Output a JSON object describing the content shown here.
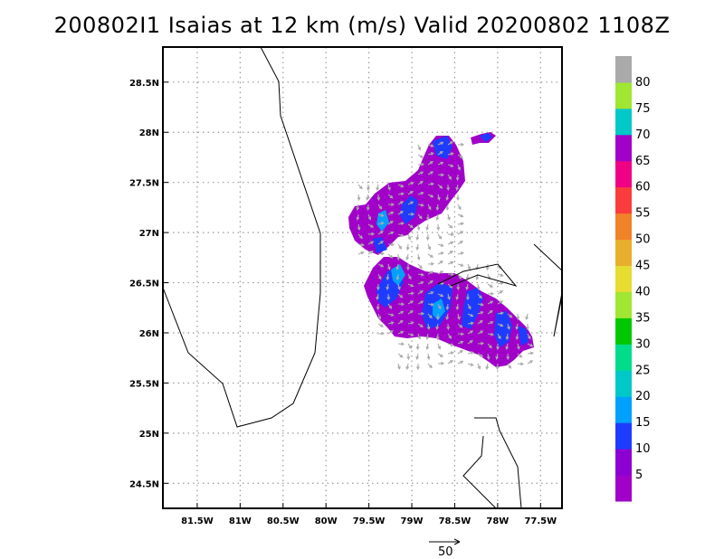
{
  "title": "200802I1  Isaias at 12 km (m/s) Valid 20200802  1108Z",
  "map": {
    "lon_range": [
      -81.9,
      -77.25
    ],
    "lat_range": [
      24.25,
      28.85
    ],
    "lon_ticks": [
      "81.5W",
      "81W",
      "80.5W",
      "80W",
      "79.5W",
      "79W",
      "78.5W",
      "78W",
      "77.5W"
    ],
    "lat_ticks": [
      "24.5N",
      "25N",
      "25.5N",
      "26N",
      "26.5N",
      "27N",
      "27.5N",
      "28N",
      "28.5N"
    ],
    "grid": "dotted",
    "ref_vector_label": "50"
  },
  "colorbar": {
    "labels": [
      "5",
      "10",
      "15",
      "20",
      "25",
      "30",
      "35",
      "40",
      "45",
      "50",
      "55",
      "60",
      "65",
      "70",
      "75",
      "80"
    ],
    "colors": [
      "#a000c8",
      "#8c00d2",
      "#1e3cff",
      "#00a0ff",
      "#00c8c8",
      "#00dc8c",
      "#00c800",
      "#a0e632",
      "#e6dc32",
      "#e6af2d",
      "#f08228",
      "#fa3c3c",
      "#f00082",
      "#a000c8",
      "#00c8c8",
      "#a0e632",
      "#aaaaaa"
    ]
  },
  "colors": {
    "wind_low": "#a000c8",
    "wind_blue": "#1e3cff",
    "wind_light": "#00a0ff",
    "arrow": "#aaaaaa"
  }
}
